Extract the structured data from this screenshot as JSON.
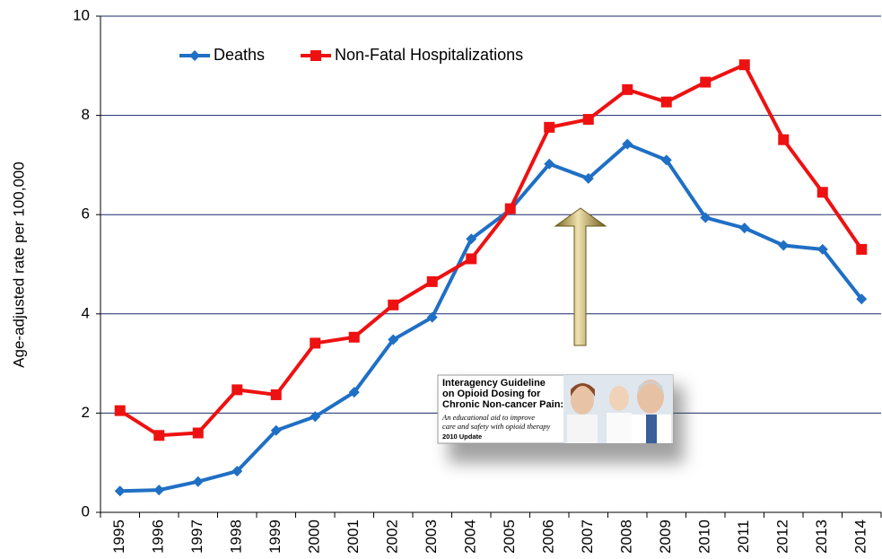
{
  "chart_data": {
    "type": "line",
    "y_label": "Age-adjusted rate per 100,000",
    "categories": [
      "1995",
      "1996",
      "1997",
      "1998",
      "1999",
      "2000",
      "2001",
      "2002",
      "2003",
      "2004",
      "2005",
      "2006",
      "2007",
      "2008",
      "2009",
      "2010",
      "2011",
      "2012",
      "2013",
      "2014"
    ],
    "series": [
      {
        "name": "Deaths",
        "color": "#1f6fc5",
        "marker": "diamond",
        "values": [
          0.43,
          0.45,
          0.62,
          0.83,
          1.65,
          1.93,
          2.42,
          3.48,
          3.93,
          5.51,
          6.1,
          7.02,
          6.73,
          7.42,
          7.1,
          5.94,
          5.73,
          5.38,
          5.3,
          4.3
        ]
      },
      {
        "name": "Non-Fatal Hospitalizations",
        "color": "#ee1111",
        "marker": "square",
        "values": [
          2.05,
          1.55,
          1.6,
          2.47,
          2.37,
          3.41,
          3.53,
          4.18,
          4.65,
          5.11,
          6.12,
          7.76,
          7.92,
          8.52,
          8.27,
          8.67,
          9.02,
          7.51,
          6.45,
          5.3
        ]
      }
    ],
    "ylim": [
      0,
      10
    ],
    "yticks": [
      0,
      2,
      4,
      6,
      8,
      10
    ],
    "grid": true,
    "annotation": {
      "title_lines": [
        "Interagency Guideline",
        "on Opioid Dosing for",
        "Chronic Non-cancer Pain:"
      ],
      "subtitle_lines": [
        "An educational aid to improve",
        "care and safety with opioid therapy"
      ],
      "note": "2010 Update"
    }
  }
}
